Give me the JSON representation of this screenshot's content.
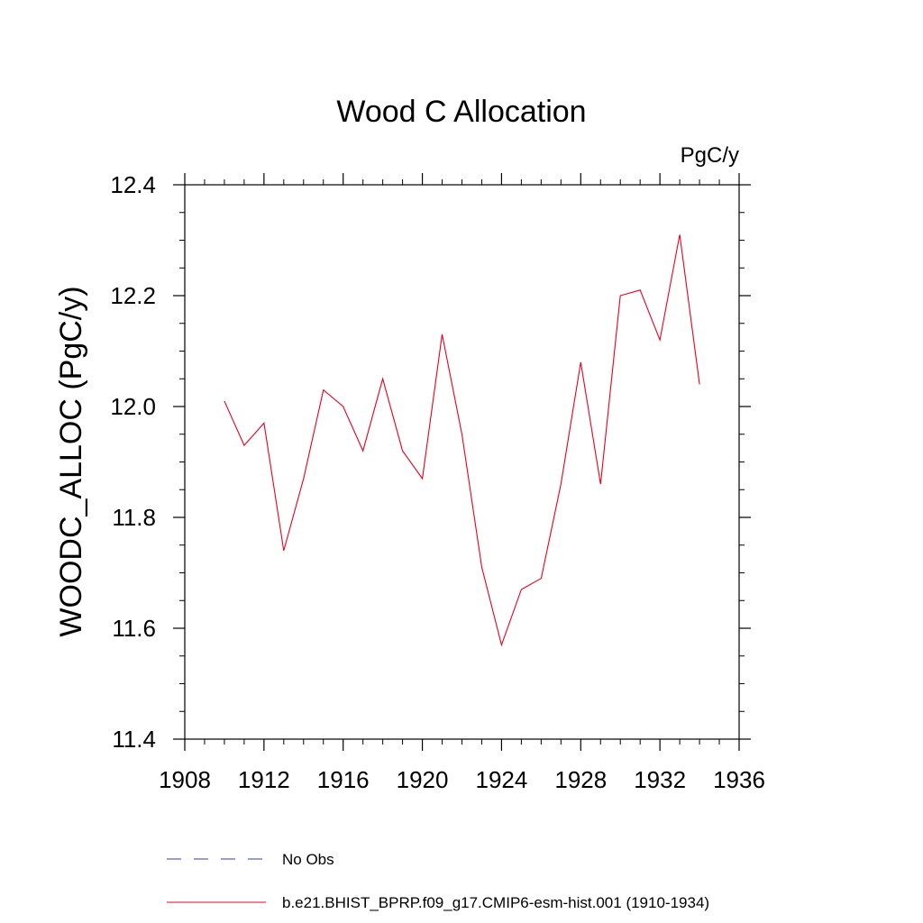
{
  "chart_data": {
    "type": "line",
    "title": "Wood C Allocation",
    "units": "PgC/y",
    "ylabel": "WOODC_ALLOC  (PgC/y)",
    "xlabel": "",
    "xlim": [
      1908,
      1936
    ],
    "ylim": [
      11.4,
      12.4
    ],
    "xticks": [
      "1908",
      "1912",
      "1916",
      "1920",
      "1924",
      "1928",
      "1932",
      "1936"
    ],
    "xtick_values": [
      1908,
      1912,
      1916,
      1920,
      1924,
      1928,
      1932,
      1936
    ],
    "yticks": [
      "11.4",
      "11.6",
      "11.8",
      "12.0",
      "12.2",
      "12.4"
    ],
    "ytick_values": [
      11.4,
      11.6,
      11.8,
      12.0,
      12.2,
      12.4
    ],
    "grid": false,
    "legend_position": "bottom",
    "series": [
      {
        "name": "b.e21.BHIST_BPRP.f09_g17.CMIP6-esm-hist.001 (1910-1934)",
        "color": "#e8001c",
        "style": "solid",
        "x": [
          1910,
          1911,
          1912,
          1913,
          1914,
          1915,
          1916,
          1917,
          1918,
          1919,
          1920,
          1921,
          1922,
          1923,
          1924,
          1925,
          1926,
          1927,
          1928,
          1929,
          1930,
          1931,
          1932,
          1933,
          1934
        ],
        "y": [
          12.01,
          11.93,
          11.97,
          11.74,
          11.87,
          12.03,
          12.0,
          11.92,
          12.05,
          11.92,
          11.87,
          12.13,
          11.95,
          11.71,
          11.57,
          11.67,
          11.69,
          11.86,
          12.08,
          11.86,
          12.2,
          12.21,
          12.12,
          12.31,
          12.04
        ]
      }
    ],
    "legend": [
      {
        "label": "No Obs",
        "color": "#3a3aa8",
        "style": "dashed"
      },
      {
        "label": "b.e21.BHIST_BPRP.f09_g17.CMIP6-esm-hist.001 (1910-1934)",
        "color": "#e8001c",
        "style": "solid"
      }
    ]
  }
}
